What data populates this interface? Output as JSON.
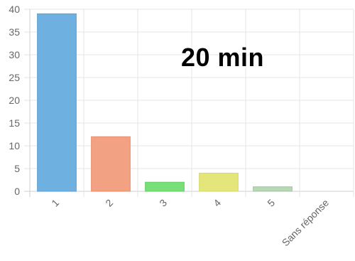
{
  "chart_data": {
    "type": "bar",
    "annotation": "20 min",
    "categories": [
      "1",
      "2",
      "3",
      "4",
      "5",
      "Sans réponse"
    ],
    "values": [
      39,
      12,
      2,
      4,
      1,
      0
    ],
    "ylim": [
      0,
      40
    ],
    "yticks": [
      0,
      5,
      10,
      15,
      20,
      25,
      30,
      35,
      40
    ],
    "grid": true,
    "colors": {
      "fill": [
        "#6eb1e1",
        "#f2a283",
        "#78de78",
        "#e4e67a",
        "#b8d6b8",
        "#cccccc"
      ],
      "stroke": [
        "#5a9fd4",
        "#e88d6d",
        "#63cf63",
        "#d6d86a",
        "#a4c8a4",
        "#bbbbbb"
      ],
      "grid": "#e6e6e6",
      "axis": "#cfcfcf"
    }
  }
}
